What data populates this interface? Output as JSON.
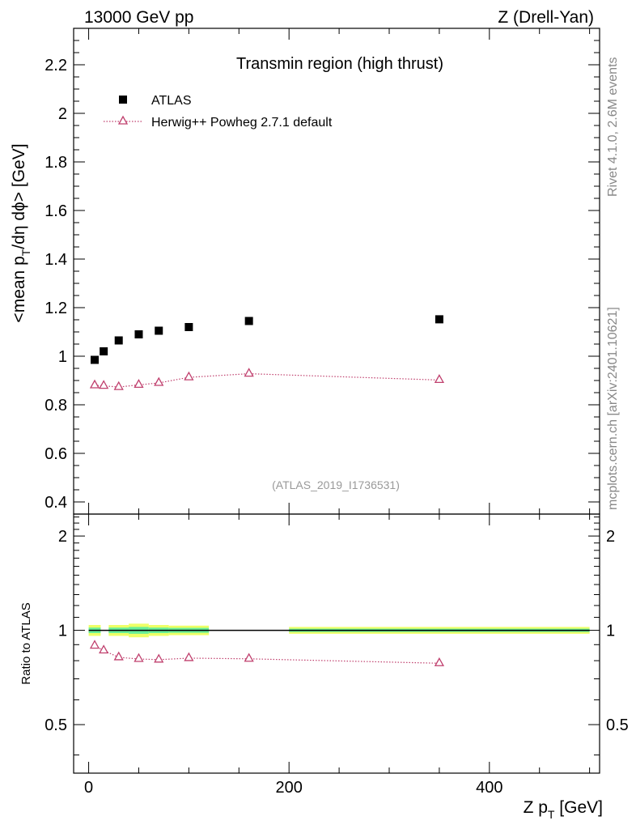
{
  "header": {
    "energy": "13000 GeV pp",
    "process": "Z (Drell-Yan)"
  },
  "side": {
    "rivet": "Rivet 4.1.0,  2.6M events",
    "source": "mcplots.cern.ch [arXiv:2401.10621]"
  },
  "chart_data": [
    {
      "type": "scatter",
      "title": "Transmin region (high thrust)",
      "watermark": "(ATLAS_2019_I1736531)",
      "ylabel_parts": [
        "<mean p",
        "T",
        "/dη dϕ> [GeV]"
      ],
      "xlim": [
        -15,
        510
      ],
      "ylim": [
        0.35,
        2.35
      ],
      "yticks": [
        0.4,
        0.6,
        0.8,
        1,
        1.2,
        1.4,
        1.6,
        1.8,
        2,
        2.2
      ],
      "ytick_labels": [
        "0.4",
        "0.6",
        "0.8",
        "1",
        "1.2",
        "1.4",
        "1.6",
        "1.8",
        "2",
        "2.2"
      ],
      "series": [
        {
          "name": "ATLAS",
          "marker": "square",
          "color": "#000000",
          "x": [
            6,
            15,
            30,
            50,
            70,
            100,
            160,
            350
          ],
          "y": [
            0.985,
            1.02,
            1.065,
            1.09,
            1.105,
            1.12,
            1.145,
            1.152
          ]
        },
        {
          "name": "Herwig++ Powheg 2.7.1 default",
          "marker": "triangle-open",
          "line": "dotted",
          "color": "#c0406e",
          "x": [
            6,
            15,
            30,
            50,
            70,
            100,
            160,
            350
          ],
          "y": [
            0.88,
            0.878,
            0.873,
            0.882,
            0.89,
            0.913,
            0.928,
            0.902
          ]
        }
      ]
    },
    {
      "type": "scatter",
      "ylabel": "Ratio to ATLAS",
      "xlabel_parts": [
        "Z p",
        "T",
        " [GeV]"
      ],
      "xlim": [
        -15,
        510
      ],
      "ylim": [
        0.35,
        2.35
      ],
      "xticks": [
        0,
        200,
        400
      ],
      "xtick_labels": [
        "0",
        "200",
        "400"
      ],
      "yticks": [
        0.5,
        1,
        2
      ],
      "ytick_labels": [
        "0.5",
        "1",
        "2"
      ],
      "reference_line": 1,
      "band_color_inner": "#66ee99",
      "band_color_outer": "#eeff66",
      "band_bins": [
        {
          "lo": 0,
          "hi": 12,
          "inner": 0.02,
          "outer": 0.04
        },
        {
          "lo": 20,
          "hi": 40,
          "inner": 0.02,
          "outer": 0.04
        },
        {
          "lo": 40,
          "hi": 60,
          "inner": 0.025,
          "outer": 0.05
        },
        {
          "lo": 60,
          "hi": 80,
          "inner": 0.02,
          "outer": 0.04
        },
        {
          "lo": 80,
          "hi": 120,
          "inner": 0.018,
          "outer": 0.035
        },
        {
          "lo": 200,
          "hi": 500,
          "inner": 0.012,
          "outer": 0.025
        }
      ],
      "series": [
        {
          "name": "Herwig++ Powheg 2.7.1 default / ATLAS",
          "marker": "triangle-open",
          "line": "dotted",
          "color": "#c0406e",
          "x": [
            6,
            15,
            30,
            50,
            70,
            100,
            160,
            350
          ],
          "y": [
            0.893,
            0.862,
            0.82,
            0.81,
            0.806,
            0.815,
            0.811,
            0.785
          ]
        }
      ]
    }
  ]
}
